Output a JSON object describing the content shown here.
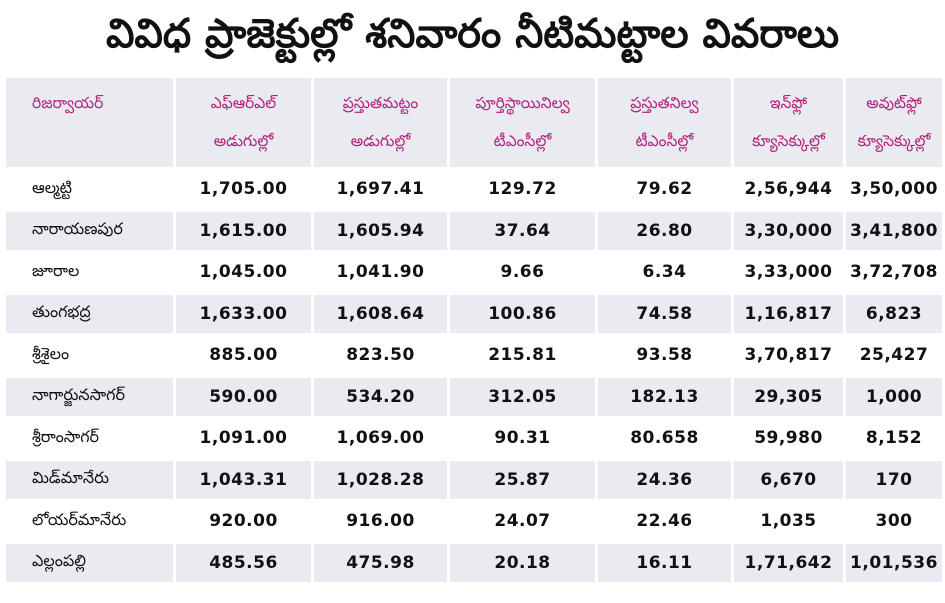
{
  "title": "వివిధ ప్రాజెక్టుల్లో శనివారం నీటిమట్టాల వివరాలు",
  "headers": [
    {
      "line1": "రిజర్వాయర్",
      "line2": ""
    },
    {
      "line1": "ఎఫ్ఆర్ఎల్",
      "line2": "అడుగుల్లో"
    },
    {
      "line1": "ప్రస్తుతమట్టం",
      "line2": "అడుగుల్లో"
    },
    {
      "line1": "పూర్తిస్థాయినిల్వ",
      "line2": "టీఎంసీల్లో"
    },
    {
      "line1": "ప్రస్తుతనిల్వ",
      "line2": "టీఎంసీల్లో"
    },
    {
      "line1": "ఇన్‌ఫ్లో",
      "line2": "క్యూసెక్కుల్లో"
    },
    {
      "line1": "అవుట్‌ఫ్లో",
      "line2": "క్యూసెక్కుల్లో"
    }
  ],
  "rows": [
    {
      "name": "ఆల్మట్టి",
      "frl": "1,705.00",
      "current_level": "1,697.41",
      "full_storage": "129.72",
      "current_storage": "79.62",
      "inflow": "2,56,944",
      "outflow": "3,50,000"
    },
    {
      "name": "నారాయణపుర",
      "frl": "1,615.00",
      "current_level": "1,605.94",
      "full_storage": "37.64",
      "current_storage": "26.80",
      "inflow": "3,30,000",
      "outflow": "3,41,800"
    },
    {
      "name": "జూరాల",
      "frl": "1,045.00",
      "current_level": "1,041.90",
      "full_storage": "9.66",
      "current_storage": "6.34",
      "inflow": "3,33,000",
      "outflow": "3,72,708"
    },
    {
      "name": "తుంగభద్ర",
      "frl": "1,633.00",
      "current_level": "1,608.64",
      "full_storage": "100.86",
      "current_storage": "74.58",
      "inflow": "1,16,817",
      "outflow": "6,823"
    },
    {
      "name": "శ్రీశైలం",
      "frl": "885.00",
      "current_level": "823.50",
      "full_storage": "215.81",
      "current_storage": "93.58",
      "inflow": "3,70,817",
      "outflow": "25,427"
    },
    {
      "name": "నాగార్జునసాగర్",
      "frl": "590.00",
      "current_level": "534.20",
      "full_storage": "312.05",
      "current_storage": "182.13",
      "inflow": "29,305",
      "outflow": "1,000"
    },
    {
      "name": "శ్రీరాంసాగర్",
      "frl": "1,091.00",
      "current_level": "1,069.00",
      "full_storage": "90.31",
      "current_storage": "80.658",
      "inflow": "59,980",
      "outflow": "8,152"
    },
    {
      "name": "మిడ్‌మానేరు",
      "frl": "1,043.31",
      "current_level": "1,028.28",
      "full_storage": "25.87",
      "current_storage": "24.36",
      "inflow": "6,670",
      "outflow": "170"
    },
    {
      "name": "లోయర్‌మానేరు",
      "frl": "920.00",
      "current_level": "916.00",
      "full_storage": "24.07",
      "current_storage": "22.46",
      "inflow": "1,035",
      "outflow": "300"
    },
    {
      "name": "ఎల్లంపల్లి",
      "frl": "485.56",
      "current_level": "475.98",
      "full_storage": "20.18",
      "current_storage": "16.11",
      "inflow": "1,71,642",
      "outflow": "1,01,536"
    }
  ]
}
